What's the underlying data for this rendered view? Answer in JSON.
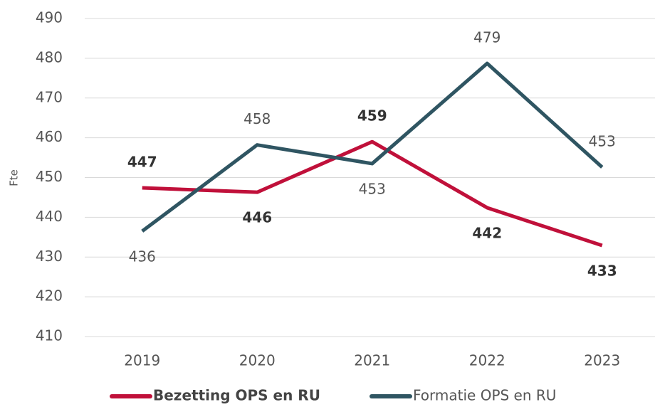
{
  "chart_data": {
    "type": "line",
    "y_label": "Fte",
    "categories": [
      "2019",
      "2020",
      "2021",
      "2022",
      "2023"
    ],
    "series": [
      {
        "name": "Bezetting OPS en RU",
        "color": "#c0103a",
        "bold": true,
        "values": [
          447.4,
          446.3,
          459.0,
          442.4,
          432.9
        ],
        "value_labels": [
          "447",
          "446",
          "459",
          "442",
          "433"
        ]
      },
      {
        "name": "Formatie OPS en RU",
        "color": "#2f5562",
        "bold": false,
        "values": [
          436.5,
          458.2,
          453.5,
          478.7,
          452.6
        ],
        "value_labels": [
          "436",
          "458",
          "453",
          "479",
          "453"
        ]
      }
    ],
    "ylim": [
      410,
      490
    ],
    "yticks": [
      410,
      420,
      430,
      440,
      450,
      460,
      470,
      480,
      490
    ],
    "grid": true,
    "legend": "bottom"
  }
}
